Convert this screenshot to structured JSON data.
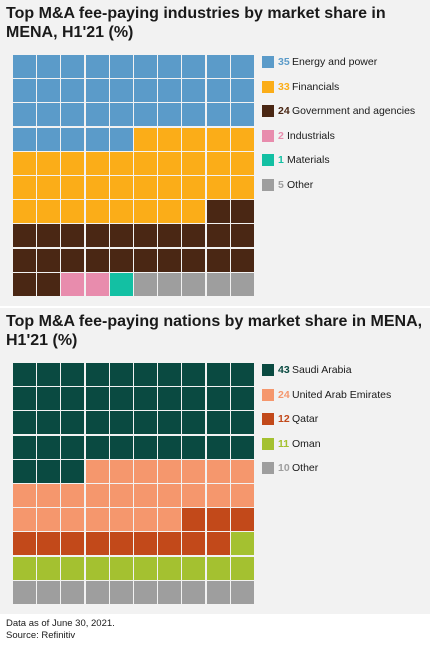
{
  "chart_data": [
    {
      "type": "waffle",
      "title": "Top M&A fee-paying industries by market share in MENA, H1'21 (%)",
      "series": [
        {
          "name": "Energy and power",
          "value": 35,
          "color": "#5b9bc9"
        },
        {
          "name": "Financials",
          "value": 33,
          "color": "#fbad18"
        },
        {
          "name": "Government and agencies",
          "value": 24,
          "color": "#4a2714"
        },
        {
          "name": "Industrials",
          "value": 2,
          "color": "#e88cad"
        },
        {
          "name": "Materials",
          "value": 1,
          "color": "#13c0a3"
        },
        {
          "name": "Other",
          "value": 5,
          "color": "#9e9e9e"
        }
      ]
    },
    {
      "type": "waffle",
      "title": "Top M&A fee-paying nations by market share in MENA, H1'21 (%)",
      "series": [
        {
          "name": "Saudi Arabia",
          "value": 43,
          "color": "#0a4a41"
        },
        {
          "name": "United Arab Emirates",
          "value": 24,
          "color": "#f5976d"
        },
        {
          "name": "Qatar",
          "value": 12,
          "color": "#c2491a"
        },
        {
          "name": "Oman",
          "value": 11,
          "color": "#a4c130"
        },
        {
          "name": "Other",
          "value": 10,
          "color": "#9e9e9e"
        }
      ]
    }
  ],
  "footer": {
    "line1": "Data as of June 30, 2021.",
    "line2": "Source: Refinitiv"
  }
}
